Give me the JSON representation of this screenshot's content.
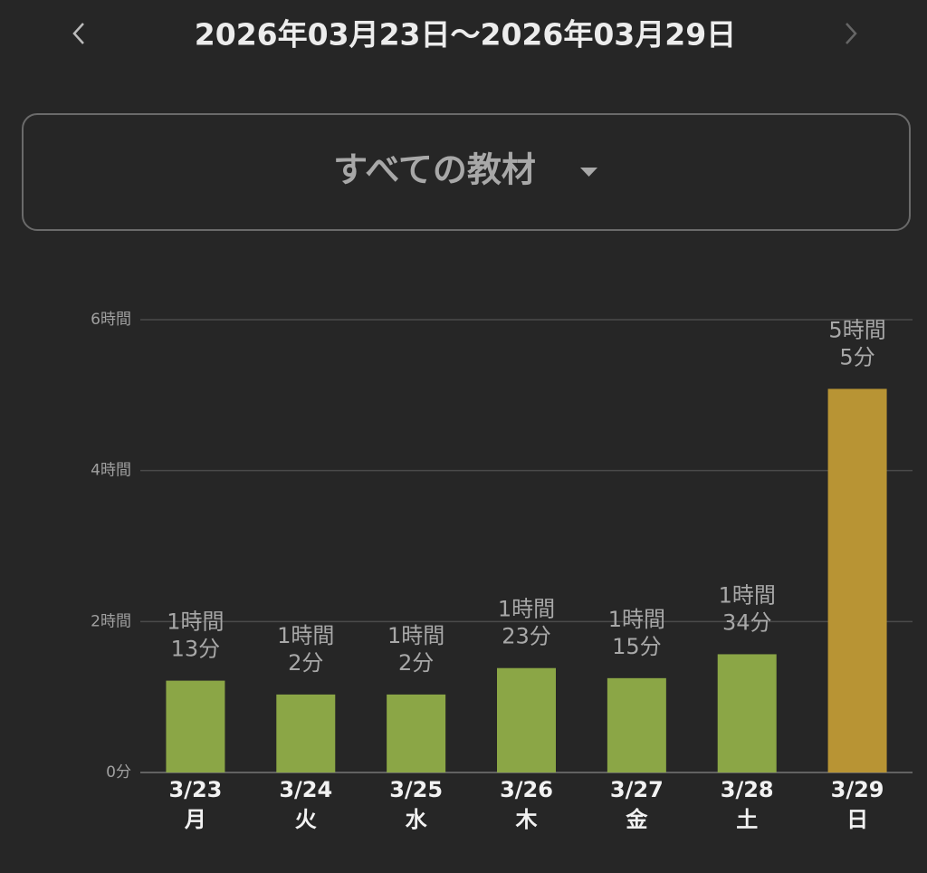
{
  "header": {
    "date_range": "2026年03月23日〜2026年03月29日"
  },
  "selector": {
    "label": "すべての教材"
  },
  "chart_data": {
    "type": "bar",
    "categories": [
      "3/23",
      "3/24",
      "3/25",
      "3/26",
      "3/27",
      "3/28",
      "3/29"
    ],
    "weekdays": [
      "月",
      "火",
      "水",
      "木",
      "金",
      "土",
      "日"
    ],
    "values": [
      1.2167,
      1.0333,
      1.0333,
      1.3833,
      1.25,
      1.5667,
      5.0833
    ],
    "value_labels": [
      [
        "1時間",
        "13分"
      ],
      [
        "1時間",
        "2分"
      ],
      [
        "1時間",
        "2分"
      ],
      [
        "1時間",
        "23分"
      ],
      [
        "1時間",
        "15分"
      ],
      [
        "1時間",
        "34分"
      ],
      [
        "5時間",
        "5分"
      ]
    ],
    "colors": [
      "#8ba646",
      "#8ba646",
      "#8ba646",
      "#8ba646",
      "#8ba646",
      "#8ba646",
      "#b89434"
    ],
    "ylim": [
      0,
      6
    ],
    "yticks": [
      {
        "value": 0,
        "label": "0分"
      },
      {
        "value": 2,
        "label": "2時間"
      },
      {
        "value": 4,
        "label": "4時間"
      },
      {
        "value": 6,
        "label": "6時間"
      }
    ],
    "grid": true
  }
}
